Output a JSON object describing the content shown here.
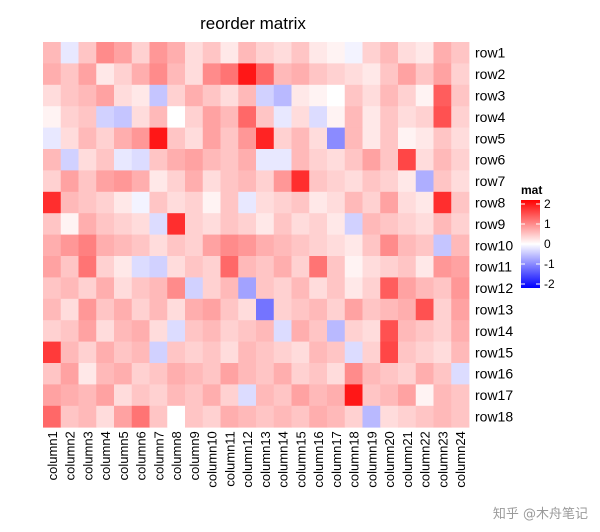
{
  "chart_data": {
    "type": "heatmap",
    "title": "reorder matrix",
    "legend": {
      "title": "mat",
      "ticks": [
        "2",
        "1",
        "0",
        "-1",
        "-2"
      ],
      "tick_values": [
        2,
        1,
        0,
        -1,
        -2
      ],
      "colors": {
        "low": "#0000ff",
        "mid": "#ffffff",
        "high": "#ff0000"
      },
      "range": [
        -2.2,
        2.2
      ],
      "placement": "right"
    },
    "rows": [
      "row1",
      "row2",
      "row3",
      "row4",
      "row5",
      "row6",
      "row7",
      "row8",
      "row9",
      "row10",
      "row11",
      "row12",
      "row13",
      "row14",
      "row15",
      "row16",
      "row17",
      "row18"
    ],
    "columns": [
      "column1",
      "column2",
      "column3",
      "column4",
      "column5",
      "column6",
      "column7",
      "column8",
      "column9",
      "column10",
      "column11",
      "column12",
      "column13",
      "column14",
      "column15",
      "column16",
      "column17",
      "column18",
      "column19",
      "column20",
      "column21",
      "column22",
      "column23",
      "column24"
    ],
    "values": [
      [
        0.6,
        -0.2,
        0.5,
        1.0,
        0.8,
        0.4,
        0.9,
        0.7,
        0.3,
        0.5,
        0.2,
        0.6,
        0.4,
        0.3,
        0.5,
        0.2,
        0.1,
        -0.1,
        0.4,
        0.6,
        0.3,
        0.2,
        0.7,
        0.5
      ],
      [
        0.7,
        0.5,
        0.8,
        0.2,
        0.4,
        0.7,
        1.0,
        0.6,
        0.3,
        1.0,
        1.2,
        2.0,
        1.3,
        0.6,
        0.7,
        0.5,
        0.4,
        0.3,
        0.2,
        0.5,
        0.8,
        0.5,
        0.8,
        0.4
      ],
      [
        0.3,
        0.5,
        0.6,
        0.8,
        0.3,
        0.2,
        -0.5,
        0.4,
        0.7,
        0.5,
        0.3,
        0.6,
        -0.4,
        -0.6,
        0.2,
        0.1,
        0.0,
        0.5,
        0.3,
        0.6,
        0.4,
        0.1,
        1.4,
        0.5
      ],
      [
        0.1,
        0.4,
        0.5,
        -0.4,
        -0.5,
        0.3,
        0.6,
        0.0,
        0.4,
        0.8,
        0.6,
        1.3,
        0.5,
        -0.2,
        0.3,
        -0.3,
        0.1,
        0.6,
        0.2,
        0.5,
        0.3,
        0.4,
        1.5,
        0.4
      ],
      [
        -0.2,
        0.3,
        0.6,
        0.4,
        0.7,
        0.9,
        2.0,
        0.5,
        0.3,
        0.8,
        0.5,
        0.9,
        1.9,
        0.4,
        0.6,
        0.3,
        -1.0,
        0.6,
        0.2,
        0.5,
        0.1,
        0.2,
        0.5,
        0.3
      ],
      [
        0.6,
        -0.4,
        0.3,
        0.5,
        -0.2,
        -0.3,
        0.5,
        0.7,
        0.8,
        0.6,
        0.5,
        0.7,
        -0.2,
        -0.2,
        0.6,
        0.4,
        0.3,
        0.5,
        0.8,
        0.5,
        1.6,
        0.3,
        0.6,
        0.4
      ],
      [
        0.4,
        0.8,
        0.5,
        0.8,
        0.9,
        0.7,
        0.2,
        0.4,
        0.7,
        0.3,
        0.5,
        0.6,
        0.4,
        0.9,
        1.8,
        0.5,
        0.4,
        0.3,
        0.5,
        0.4,
        0.2,
        -0.7,
        0.5,
        0.3
      ],
      [
        1.8,
        0.6,
        0.5,
        0.4,
        0.2,
        -0.1,
        0.5,
        0.3,
        0.4,
        0.1,
        0.5,
        -0.2,
        0.3,
        0.4,
        0.5,
        0.2,
        0.3,
        0.6,
        0.4,
        0.8,
        0.3,
        0.2,
        1.8,
        0.5
      ],
      [
        0.5,
        0.1,
        0.7,
        0.5,
        0.4,
        0.3,
        -0.3,
        1.8,
        0.4,
        0.3,
        0.5,
        0.4,
        0.2,
        0.5,
        0.3,
        0.4,
        0.2,
        -0.4,
        0.6,
        0.5,
        0.4,
        0.3,
        0.6,
        0.4
      ],
      [
        0.7,
        0.9,
        1.1,
        0.7,
        0.6,
        0.5,
        0.3,
        0.5,
        0.4,
        0.8,
        1.0,
        0.9,
        0.7,
        0.6,
        0.5,
        0.4,
        0.3,
        0.2,
        0.5,
        1.0,
        0.6,
        0.5,
        -0.5,
        0.6
      ],
      [
        0.8,
        0.5,
        1.2,
        0.4,
        0.2,
        -0.3,
        -0.4,
        0.3,
        0.5,
        0.4,
        1.3,
        0.6,
        0.5,
        0.7,
        0.4,
        1.2,
        0.5,
        0.1,
        0.3,
        0.4,
        0.5,
        0.2,
        0.9,
        0.8
      ],
      [
        0.5,
        0.6,
        0.4,
        0.7,
        0.3,
        0.5,
        0.6,
        1.0,
        -0.4,
        0.4,
        0.6,
        -0.8,
        0.5,
        0.4,
        0.6,
        0.3,
        0.5,
        0.2,
        0.4,
        1.4,
        0.8,
        0.6,
        0.5,
        0.9
      ],
      [
        0.6,
        0.3,
        0.9,
        0.5,
        0.7,
        0.4,
        0.6,
        0.3,
        0.7,
        0.8,
        0.5,
        0.3,
        -1.2,
        0.4,
        0.5,
        0.6,
        0.4,
        0.8,
        0.5,
        0.6,
        0.7,
        1.5,
        0.4,
        0.8
      ],
      [
        0.4,
        0.5,
        0.8,
        0.3,
        0.6,
        0.7,
        0.3,
        -0.3,
        0.5,
        0.6,
        0.4,
        0.5,
        0.6,
        -0.3,
        0.7,
        0.5,
        -0.6,
        0.4,
        0.3,
        1.5,
        0.6,
        0.5,
        0.4,
        0.7
      ],
      [
        1.7,
        0.6,
        0.4,
        0.7,
        0.5,
        0.6,
        -0.4,
        0.5,
        0.4,
        0.5,
        0.3,
        0.6,
        0.5,
        0.4,
        0.3,
        0.6,
        0.5,
        -0.3,
        0.4,
        1.6,
        0.5,
        0.4,
        0.3,
        0.6
      ],
      [
        0.5,
        0.8,
        0.2,
        0.6,
        0.7,
        0.4,
        0.5,
        0.7,
        0.6,
        0.5,
        0.8,
        0.6,
        0.5,
        0.7,
        0.4,
        0.5,
        0.3,
        1.0,
        0.6,
        0.5,
        0.4,
        0.7,
        0.5,
        -0.3
      ],
      [
        0.8,
        0.7,
        0.6,
        0.8,
        0.3,
        0.5,
        0.4,
        0.6,
        0.5,
        0.7,
        0.4,
        -0.3,
        0.6,
        0.5,
        0.8,
        0.6,
        0.7,
        2.0,
        0.5,
        0.6,
        0.8,
        0.1,
        0.6,
        0.5
      ],
      [
        1.3,
        0.5,
        0.6,
        0.3,
        0.8,
        1.2,
        0.5,
        0.0,
        0.5,
        0.4,
        0.7,
        0.6,
        0.5,
        0.6,
        0.5,
        0.7,
        0.6,
        0.4,
        -0.6,
        0.3,
        0.4,
        0.5,
        0.6,
        0.5
      ]
    ]
  },
  "watermark": "知乎 @木舟笔记"
}
